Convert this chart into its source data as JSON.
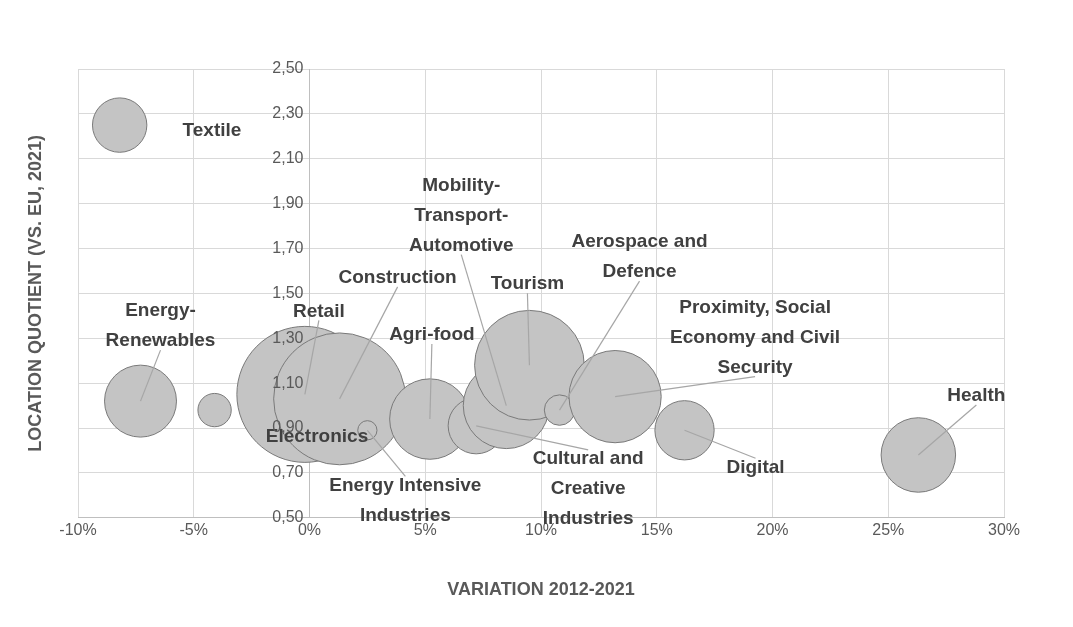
{
  "chart_data": {
    "type": "bubble",
    "xlabel": "VARIATION 2012-2021",
    "ylabel": "LOCATION QUOTIENT (VS. EU, 2021)",
    "x": [
      -8.2,
      -7.3,
      -4.1,
      -0.2,
      1.3,
      2.5,
      5.2,
      7.2,
      8.5,
      9.5,
      10.8,
      13.2,
      16.2,
      26.3
    ],
    "series": [
      {
        "color": "#c4c4c4",
        "values": [
          2.25,
          1.02,
          0.98,
          1.05,
          1.03,
          0.89,
          0.94,
          0.91,
          1.0,
          1.18,
          0.98,
          1.04,
          0.89,
          0.78
        ],
        "sizes": [
          0.16,
          0.28,
          0.06,
          1,
          0.94,
          0.02,
          0.35,
          0.17,
          0.4,
          0.65,
          0.05,
          0.46,
          0.19,
          0.3
        ]
      }
    ],
    "xlim": [
      -10,
      30
    ],
    "xticks": [
      {
        "value": -10,
        "label": "-10%"
      },
      {
        "value": -5,
        "label": "-5%"
      },
      {
        "value": 0,
        "label": "0%"
      },
      {
        "value": 5,
        "label": "5%"
      },
      {
        "value": 10,
        "label": "10%"
      },
      {
        "value": 15,
        "label": "15%"
      },
      {
        "value": 20,
        "label": "20%"
      },
      {
        "value": 25,
        "label": "25%"
      },
      {
        "value": 30,
        "label": "30%"
      }
    ],
    "ylim": [
      0.5,
      2.5
    ],
    "yticks": [
      {
        "value": 0.5,
        "label": "0,50"
      },
      {
        "value": 0.7,
        "label": "0,70"
      },
      {
        "value": 0.9,
        "label": "0,90"
      },
      {
        "value": 1.1,
        "label": "1,10"
      },
      {
        "value": 1.3,
        "label": "1,30"
      },
      {
        "value": 1.5,
        "label": "1,50"
      },
      {
        "value": 1.7,
        "label": "1,70"
      },
      {
        "value": 1.9,
        "label": "1,90"
      },
      {
        "value": 2.1,
        "label": "2,10"
      },
      {
        "value": 2.3,
        "label": "2,30"
      },
      {
        "value": 2.5,
        "label": "2,50"
      }
    ],
    "grid": true,
    "annotations": [
      "Textile",
      {
        "text": "Energy-Renewables",
        "x": -7.3,
        "y": 1.02
      },
      {
        "text": "Retail",
        "x": -0.2,
        "y": 1.05
      },
      {
        "text": "Construction",
        "x": 1.3,
        "y": 1.03
      },
      "Electronics",
      {
        "text": "Agri-food",
        "x": 5.2,
        "y": 0.94
      },
      {
        "text": "Energy Intensive Industries",
        "x": 2.5,
        "y": 0.89
      },
      {
        "text": "Mobility-Transport-Automotive",
        "x": 8.5,
        "y": 1.0
      },
      {
        "text": "Tourism",
        "x": 9.5,
        "y": 1.18
      },
      {
        "text": "Aerospace and Defence",
        "x": 10.8,
        "y": 0.98
      },
      {
        "text": "Proximity, Social Economy and Civil Security",
        "x": 13.2,
        "y": 1.04
      },
      {
        "text": "Cultural and Creative Industries",
        "x": 7.2,
        "y": 0.91
      },
      {
        "text": "Digital",
        "x": 16.2,
        "y": 0.89
      },
      {
        "text": "Health",
        "x": 26.3,
        "y": 0.78
      }
    ]
  }
}
